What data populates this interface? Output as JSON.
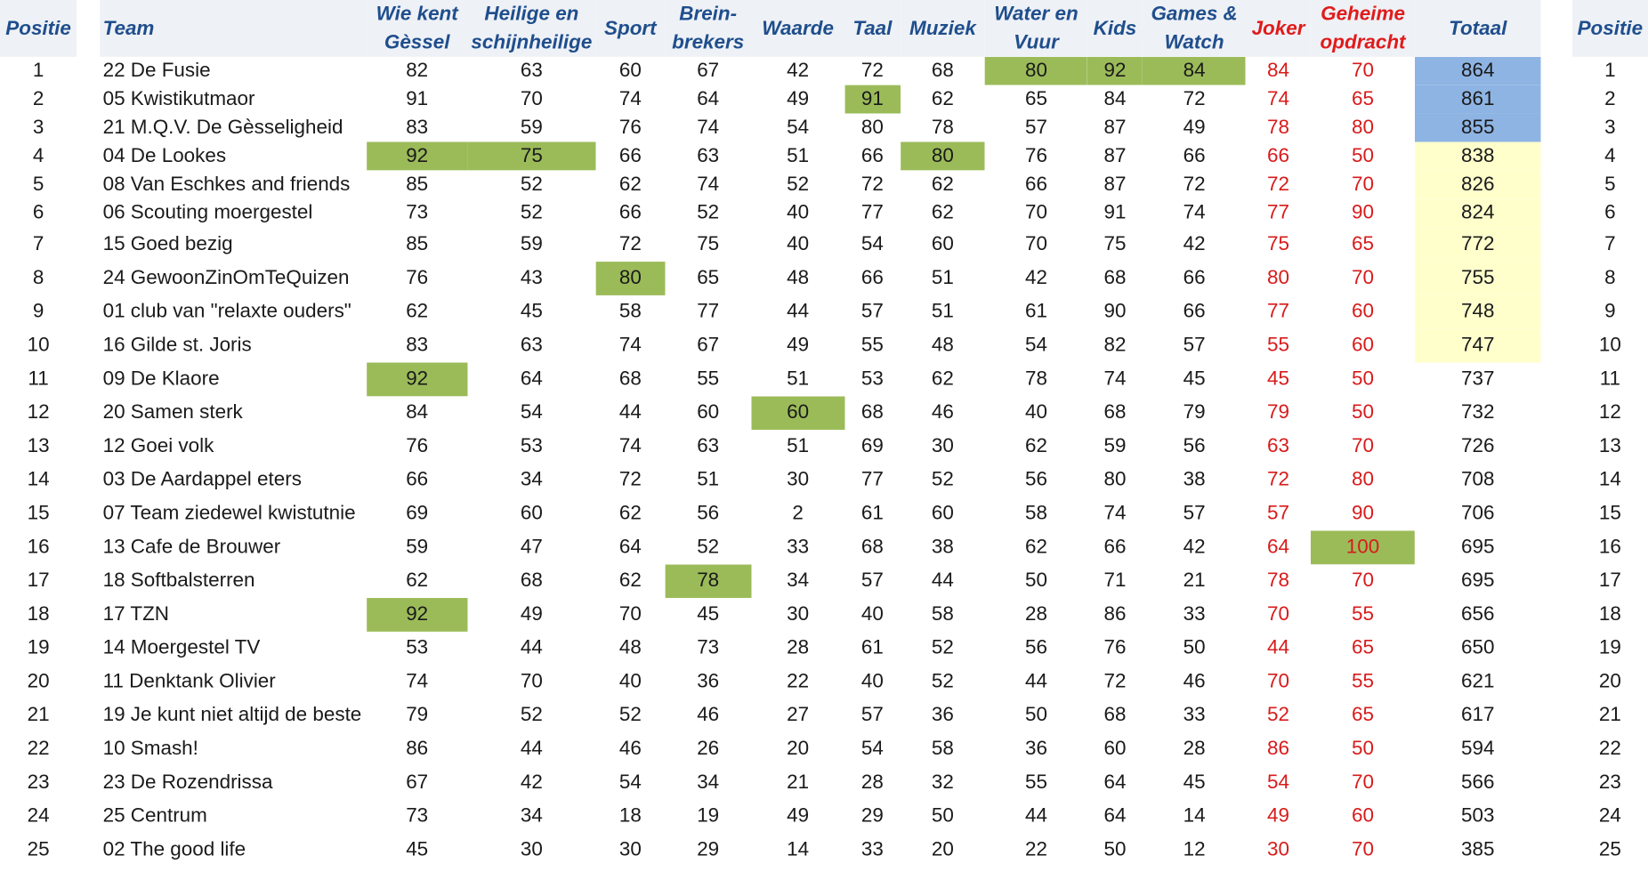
{
  "columns": {
    "positie": "Positie",
    "team": "Team",
    "wie_kent_1": "Wie kent",
    "wie_kent_2": "Gèssel",
    "heilige_1": "Heilige en",
    "heilige_2": "schijnheilige",
    "sport": "Sport",
    "brein_1": "Brein-",
    "brein_2": "brekers",
    "waarde": "Waarde",
    "taal": "Taal",
    "muziek": "Muziek",
    "water_1": "Water en",
    "water_2": "Vuur",
    "kids": "Kids",
    "games_1": "Games &",
    "games_2": "Watch",
    "joker": "Joker",
    "geheime_1": "Geheime",
    "geheime_2": "opdracht",
    "totaal": "Totaal",
    "positie_right": "Positie"
  },
  "colors": {
    "header_text": "#1f4e8c",
    "red_text": "#d81b1b",
    "highlight_green": "#9bbb59",
    "top3_blue": "#8eb4e3",
    "top10_yellow": "#ffffcc"
  },
  "rows": [
    {
      "pos": "1",
      "team": "22 De Fusie",
      "vals": [
        "82",
        "63",
        "60",
        "67",
        "42",
        "72",
        "68",
        "80",
        "92",
        "84",
        "84",
        "70"
      ],
      "total": "864",
      "hl": [
        7,
        8,
        9
      ],
      "tot": "top"
    },
    {
      "pos": "2",
      "team": "05 Kwistikutmaor",
      "vals": [
        "91",
        "70",
        "74",
        "64",
        "49",
        "91",
        "62",
        "65",
        "84",
        "72",
        "74",
        "65"
      ],
      "total": "861",
      "hl": [
        5
      ],
      "tot": "top"
    },
    {
      "pos": "3",
      "team": "21 M.Q.V. De Gèsseligheid",
      "vals": [
        "83",
        "59",
        "76",
        "74",
        "54",
        "80",
        "78",
        "57",
        "87",
        "49",
        "78",
        "80"
      ],
      "total": "855",
      "hl": [],
      "tot": "top"
    },
    {
      "pos": "4",
      "team": "04 De Lookes",
      "vals": [
        "92",
        "75",
        "66",
        "63",
        "51",
        "66",
        "80",
        "76",
        "87",
        "66",
        "66",
        "50"
      ],
      "total": "838",
      "hl": [
        0,
        1,
        6
      ],
      "tot": "mid"
    },
    {
      "pos": "5",
      "team": "08 Van Eschkes and friends",
      "vals": [
        "85",
        "52",
        "62",
        "74",
        "52",
        "72",
        "62",
        "66",
        "87",
        "72",
        "72",
        "70"
      ],
      "total": "826",
      "hl": [],
      "tot": "mid"
    },
    {
      "pos": "6",
      "team": "06 Scouting moergestel",
      "vals": [
        "73",
        "52",
        "66",
        "52",
        "40",
        "77",
        "62",
        "70",
        "91",
        "74",
        "77",
        "90"
      ],
      "total": "824",
      "hl": [],
      "tot": "mid"
    },
    {
      "pos": "7",
      "team": "15 Goed bezig",
      "vals": [
        "85",
        "59",
        "72",
        "75",
        "40",
        "54",
        "60",
        "70",
        "75",
        "42",
        "75",
        "65"
      ],
      "total": "772",
      "hl": [],
      "tot": "mid"
    },
    {
      "pos": "8",
      "team": "24 GewoonZinOmTeQuizen",
      "vals": [
        "76",
        "43",
        "80",
        "65",
        "48",
        "66",
        "51",
        "42",
        "68",
        "66",
        "80",
        "70"
      ],
      "total": "755",
      "hl": [
        2
      ],
      "tot": "mid"
    },
    {
      "pos": "9",
      "team": "01 club van \"relaxte ouders\"",
      "vals": [
        "62",
        "45",
        "58",
        "77",
        "44",
        "57",
        "51",
        "61",
        "90",
        "66",
        "77",
        "60"
      ],
      "total": "748",
      "hl": [],
      "tot": "mid"
    },
    {
      "pos": "10",
      "team": "16 Gilde st. Joris",
      "vals": [
        "83",
        "63",
        "74",
        "67",
        "49",
        "55",
        "48",
        "54",
        "82",
        "57",
        "55",
        "60"
      ],
      "total": "747",
      "hl": [],
      "tot": "mid"
    },
    {
      "pos": "11",
      "team": "09 De Klaore",
      "vals": [
        "92",
        "64",
        "68",
        "55",
        "51",
        "53",
        "62",
        "78",
        "74",
        "45",
        "45",
        "50"
      ],
      "total": "737",
      "hl": [
        0
      ],
      "tot": ""
    },
    {
      "pos": "12",
      "team": "20 Samen sterk",
      "vals": [
        "84",
        "54",
        "44",
        "60",
        "60",
        "68",
        "46",
        "40",
        "68",
        "79",
        "79",
        "50"
      ],
      "total": "732",
      "hl": [
        4
      ],
      "tot": ""
    },
    {
      "pos": "13",
      "team": "12 Goei volk",
      "vals": [
        "76",
        "53",
        "74",
        "63",
        "51",
        "69",
        "30",
        "62",
        "59",
        "56",
        "63",
        "70"
      ],
      "total": "726",
      "hl": [],
      "tot": ""
    },
    {
      "pos": "14",
      "team": "03 De Aardappel eters",
      "vals": [
        "66",
        "34",
        "72",
        "51",
        "30",
        "77",
        "52",
        "56",
        "80",
        "38",
        "72",
        "80"
      ],
      "total": "708",
      "hl": [],
      "tot": ""
    },
    {
      "pos": "15",
      "team": "07 Team ziedewel kwistutnie",
      "vals": [
        "69",
        "60",
        "62",
        "56",
        "2",
        "61",
        "60",
        "58",
        "74",
        "57",
        "57",
        "90"
      ],
      "total": "706",
      "hl": [],
      "tot": ""
    },
    {
      "pos": "16",
      "team": "13 Cafe de Brouwer",
      "vals": [
        "59",
        "47",
        "64",
        "52",
        "33",
        "68",
        "38",
        "62",
        "66",
        "42",
        "64",
        "100"
      ],
      "total": "695",
      "hl": [
        11
      ],
      "tot": ""
    },
    {
      "pos": "17",
      "team": "18 Softbalsterren",
      "vals": [
        "62",
        "68",
        "62",
        "78",
        "34",
        "57",
        "44",
        "50",
        "71",
        "21",
        "78",
        "70"
      ],
      "total": "695",
      "hl": [
        3
      ],
      "tot": ""
    },
    {
      "pos": "18",
      "team": "17 TZN",
      "vals": [
        "92",
        "49",
        "70",
        "45",
        "30",
        "40",
        "58",
        "28",
        "86",
        "33",
        "70",
        "55"
      ],
      "total": "656",
      "hl": [
        0
      ],
      "tot": ""
    },
    {
      "pos": "19",
      "team": "14 Moergestel TV",
      "vals": [
        "53",
        "44",
        "48",
        "73",
        "28",
        "61",
        "52",
        "56",
        "76",
        "50",
        "44",
        "65"
      ],
      "total": "650",
      "hl": [],
      "tot": ""
    },
    {
      "pos": "20",
      "team": "11 Denktank Olivier",
      "vals": [
        "74",
        "70",
        "40",
        "36",
        "22",
        "40",
        "52",
        "44",
        "72",
        "46",
        "70",
        "55"
      ],
      "total": "621",
      "hl": [],
      "tot": ""
    },
    {
      "pos": "21",
      "team": "19 Je kunt niet altijd de beste",
      "vals": [
        "79",
        "52",
        "52",
        "46",
        "27",
        "57",
        "36",
        "50",
        "68",
        "33",
        "52",
        "65"
      ],
      "total": "617",
      "hl": [],
      "tot": ""
    },
    {
      "pos": "22",
      "team": "10 Smash!",
      "vals": [
        "86",
        "44",
        "46",
        "26",
        "20",
        "54",
        "58",
        "36",
        "60",
        "28",
        "86",
        "50"
      ],
      "total": "594",
      "hl": [],
      "tot": ""
    },
    {
      "pos": "23",
      "team": "23 De Rozendrissa",
      "vals": [
        "67",
        "42",
        "54",
        "34",
        "21",
        "28",
        "32",
        "55",
        "64",
        "45",
        "54",
        "70"
      ],
      "total": "566",
      "hl": [],
      "tot": ""
    },
    {
      "pos": "24",
      "team": "25 Centrum",
      "vals": [
        "73",
        "34",
        "18",
        "19",
        "49",
        "29",
        "50",
        "44",
        "64",
        "14",
        "49",
        "60"
      ],
      "total": "503",
      "hl": [],
      "tot": ""
    },
    {
      "pos": "25",
      "team": "02 The good life",
      "vals": [
        "45",
        "30",
        "30",
        "29",
        "14",
        "33",
        "20",
        "22",
        "50",
        "12",
        "30",
        "70"
      ],
      "total": "385",
      "hl": [],
      "tot": ""
    }
  ]
}
